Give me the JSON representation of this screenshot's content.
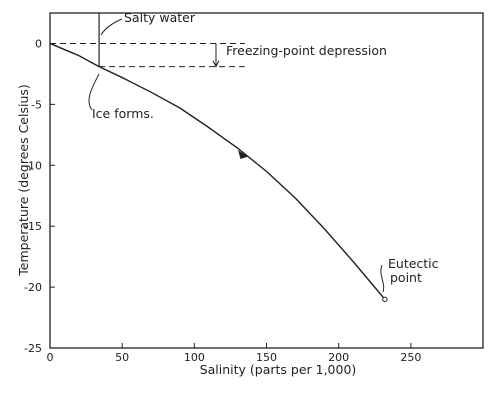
{
  "chart_data": {
    "type": "line",
    "title": "",
    "xlabel": "Salinity (parts per 1,000)",
    "ylabel": "Temperature (degrees Celsius)",
    "xlim": [
      0,
      300
    ],
    "ylim": [
      -25,
      2.5
    ],
    "x_ticks": [
      0,
      50,
      100,
      150,
      200,
      250
    ],
    "y_ticks": [
      0,
      -5,
      -10,
      -15,
      -20,
      -25
    ],
    "grid": false,
    "series": [
      {
        "name": "",
        "x": [
          0,
          10,
          20,
          34,
          50,
          70,
          90,
          110,
          130,
          150,
          170,
          190,
          210,
          232
        ],
        "y": [
          0,
          -0.5,
          -1.0,
          -1.9,
          -2.8,
          -4.0,
          -5.3,
          -6.9,
          -8.6,
          -10.5,
          -12.7,
          -15.2,
          -17.9,
          -21.0
        ]
      }
    ],
    "reference_lines": [
      {
        "type": "horizontal",
        "y": 0,
        "x_range": [
          0,
          135
        ],
        "style": "dashed"
      },
      {
        "type": "horizontal",
        "y": -1.9,
        "x_range": [
          34,
          135
        ],
        "style": "dashed"
      },
      {
        "type": "vertical",
        "x": 34,
        "y_range": [
          -1.9,
          2.5
        ],
        "style": "solid"
      }
    ],
    "annotations": [
      {
        "text": "Salty water",
        "x": 34,
        "y": 1.5
      },
      {
        "text": "Freezing-point depression",
        "x": 135,
        "y": -1.0
      },
      {
        "text": "Ice forms.",
        "x": 34,
        "y": -1.9
      },
      {
        "text": "Eutectic",
        "x": 232,
        "y": -21.0
      },
      {
        "text": "point",
        "x": 232,
        "y": -21.0
      }
    ],
    "eutectic_point": {
      "x": 232,
      "y": -21.0
    }
  }
}
